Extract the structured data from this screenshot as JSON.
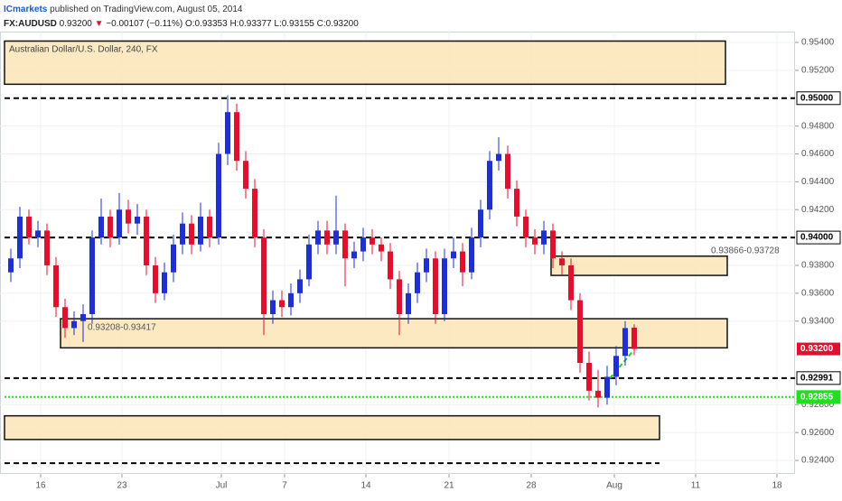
{
  "header": {
    "publisher": "ICmarkets",
    "published": "published on TradingView.com, August 05, 2014",
    "symbol": "FX:AUDUSD",
    "price": "0.93200",
    "arrow": "▼",
    "change": "−0.00107 (−0.11%)",
    "ohlc": "O:0.93353 H:0.93377 L:0.93155 C:0.93200"
  },
  "chart_data": {
    "type": "candlestick",
    "title": "Australian Dollar/U.S. Dollar, 240, FX",
    "up_color": "#1f2fd0",
    "down_color": "#e0112f",
    "xlim": [
      -1.2,
      86.8
    ],
    "ylim": [
      0.92303,
      0.95478
    ],
    "xticks": [
      {
        "value": 3.3,
        "label": "16"
      },
      {
        "value": 12.3,
        "label": "23"
      },
      {
        "value": 23.3,
        "label": "Jul"
      },
      {
        "value": 30.3,
        "label": "7"
      },
      {
        "value": 39.3,
        "label": "14"
      },
      {
        "value": 48.5,
        "label": "21"
      },
      {
        "value": 57.6,
        "label": "28"
      },
      {
        "value": 66.8,
        "label": "Aug"
      },
      {
        "value": 75.8,
        "label": "11"
      },
      {
        "value": 84.8,
        "label": "18"
      }
    ],
    "yticks": [
      {
        "value": 0.954,
        "label": "0.95400"
      },
      {
        "value": 0.952,
        "label": "0.95200"
      },
      {
        "value": 0.948,
        "label": "0.94800"
      },
      {
        "value": 0.946,
        "label": "0.94600"
      },
      {
        "value": 0.944,
        "label": "0.94400"
      },
      {
        "value": 0.942,
        "label": "0.94200"
      },
      {
        "value": 0.938,
        "label": "0.93800"
      },
      {
        "value": 0.936,
        "label": "0.93600"
      },
      {
        "value": 0.934,
        "label": "0.93400"
      },
      {
        "value": 0.928,
        "label": "0.92800"
      },
      {
        "value": 0.926,
        "label": "0.92600"
      },
      {
        "value": 0.924,
        "label": "0.92400"
      }
    ],
    "grid": true,
    "candles": [
      [
        0.9375,
        0.9392,
        0.9368,
        0.9385
      ],
      [
        0.9385,
        0.9422,
        0.9378,
        0.9415
      ],
      [
        0.9415,
        0.942,
        0.9395,
        0.94
      ],
      [
        0.94,
        0.9412,
        0.9393,
        0.9405
      ],
      [
        0.9405,
        0.941,
        0.9373,
        0.938
      ],
      [
        0.938,
        0.9386,
        0.9343,
        0.935
      ],
      [
        0.935,
        0.9356,
        0.9328,
        0.9335
      ],
      [
        0.9335,
        0.9347,
        0.933,
        0.934
      ],
      [
        0.934,
        0.9352,
        0.9325,
        0.9345
      ],
      [
        0.9345,
        0.9405,
        0.9338,
        0.94
      ],
      [
        0.94,
        0.9428,
        0.9395,
        0.9415
      ],
      [
        0.9415,
        0.942,
        0.9393,
        0.94
      ],
      [
        0.94,
        0.9432,
        0.9395,
        0.942
      ],
      [
        0.942,
        0.9427,
        0.9403,
        0.941
      ],
      [
        0.941,
        0.9424,
        0.9402,
        0.9415
      ],
      [
        0.9415,
        0.942,
        0.9373,
        0.938
      ],
      [
        0.938,
        0.9386,
        0.9353,
        0.936
      ],
      [
        0.936,
        0.9382,
        0.9355,
        0.9375
      ],
      [
        0.9375,
        0.9402,
        0.9368,
        0.9395
      ],
      [
        0.9395,
        0.9418,
        0.9388,
        0.941
      ],
      [
        0.941,
        0.9416,
        0.9388,
        0.9395
      ],
      [
        0.9395,
        0.9425,
        0.939,
        0.9415
      ],
      [
        0.9415,
        0.942,
        0.9393,
        0.94
      ],
      [
        0.94,
        0.9468,
        0.9395,
        0.946
      ],
      [
        0.946,
        0.9502,
        0.9452,
        0.949
      ],
      [
        0.949,
        0.9496,
        0.9448,
        0.9455
      ],
      [
        0.9455,
        0.9462,
        0.9428,
        0.9435
      ],
      [
        0.9435,
        0.9442,
        0.9393,
        0.94
      ],
      [
        0.94,
        0.9406,
        0.933,
        0.9345
      ],
      [
        0.9345,
        0.9362,
        0.9338,
        0.9355
      ],
      [
        0.9355,
        0.9362,
        0.9343,
        0.935
      ],
      [
        0.935,
        0.9367,
        0.9344,
        0.936
      ],
      [
        0.936,
        0.9377,
        0.9353,
        0.937
      ],
      [
        0.937,
        0.9402,
        0.9365,
        0.9395
      ],
      [
        0.9395,
        0.9412,
        0.9388,
        0.9405
      ],
      [
        0.9405,
        0.9412,
        0.9388,
        0.9395
      ],
      [
        0.9395,
        0.943,
        0.9388,
        0.9405
      ],
      [
        0.9405,
        0.941,
        0.9365,
        0.9385
      ],
      [
        0.9385,
        0.9397,
        0.9378,
        0.939
      ],
      [
        0.939,
        0.9407,
        0.9383,
        0.94
      ],
      [
        0.94,
        0.9406,
        0.9388,
        0.9395
      ],
      [
        0.9395,
        0.94,
        0.9383,
        0.939
      ],
      [
        0.939,
        0.9396,
        0.9363,
        0.937
      ],
      [
        0.937,
        0.9376,
        0.933,
        0.9345
      ],
      [
        0.9345,
        0.9367,
        0.9338,
        0.936
      ],
      [
        0.936,
        0.9382,
        0.9353,
        0.9375
      ],
      [
        0.9375,
        0.9392,
        0.9368,
        0.9385
      ],
      [
        0.9385,
        0.939,
        0.9338,
        0.9345
      ],
      [
        0.9345,
        0.9392,
        0.934,
        0.9385
      ],
      [
        0.9385,
        0.94,
        0.9378,
        0.939
      ],
      [
        0.939,
        0.9396,
        0.9365,
        0.9375
      ],
      [
        0.9375,
        0.9407,
        0.937,
        0.94
      ],
      [
        0.94,
        0.9427,
        0.9393,
        0.942
      ],
      [
        0.942,
        0.9462,
        0.9413,
        0.9455
      ],
      [
        0.9455,
        0.9472,
        0.9448,
        0.946
      ],
      [
        0.946,
        0.9466,
        0.9428,
        0.9435
      ],
      [
        0.9435,
        0.9441,
        0.9408,
        0.9415
      ],
      [
        0.9415,
        0.942,
        0.9393,
        0.94
      ],
      [
        0.94,
        0.9406,
        0.9388,
        0.9395
      ],
      [
        0.9395,
        0.9412,
        0.9388,
        0.9405
      ],
      [
        0.9405,
        0.941,
        0.9378,
        0.9385
      ],
      [
        0.9385,
        0.939,
        0.9373,
        0.938
      ],
      [
        0.938,
        0.9385,
        0.9348,
        0.9355
      ],
      [
        0.9355,
        0.936,
        0.9303,
        0.931
      ],
      [
        0.931,
        0.9318,
        0.9283,
        0.929
      ],
      [
        0.929,
        0.9305,
        0.9278,
        0.9285
      ],
      [
        0.9285,
        0.9308,
        0.928,
        0.93
      ],
      [
        0.93,
        0.9322,
        0.9294,
        0.9315
      ],
      [
        0.9315,
        0.934,
        0.9308,
        0.9335
      ],
      [
        0.93353,
        0.93377,
        0.93155,
        0.932
      ]
    ],
    "last_label": "0.93200",
    "last_color": "#e0112f",
    "zones": [
      {
        "x": [
          -0.7,
          79.1
        ],
        "y": [
          0.9541,
          0.951
        ]
      },
      {
        "x": [
          59.8,
          79.3
        ],
        "y": [
          0.93866,
          0.93728
        ],
        "label": "0.93866-0.93728",
        "label_x": 77.5
      },
      {
        "x": [
          5.5,
          79.3
        ],
        "y": [
          0.93417,
          0.93208
        ],
        "label": "0.93208-0.93417",
        "label_x": 8.5
      },
      {
        "x": [
          -0.7,
          71.8
        ],
        "y": [
          0.9272,
          0.9255
        ]
      }
    ],
    "levels": [
      {
        "value": 0.95,
        "x": [
          -0.7,
          86.8
        ],
        "label": "0.95000",
        "color": "#000000",
        "dash": "6,4"
      },
      {
        "value": 0.94,
        "x": [
          -0.7,
          86.8
        ],
        "label": "0.94000",
        "color": "#000000",
        "dash": "6,4"
      },
      {
        "value": 0.92991,
        "x": [
          -0.7,
          86.8
        ],
        "label": "0.92991",
        "color": "#000000",
        "dash": "6,4"
      },
      {
        "value": 0.92855,
        "x": [
          -0.7,
          86.8
        ],
        "label": "0.92855",
        "color": "#22dd22",
        "dash": "2,2"
      },
      {
        "value": 0.9238,
        "x": [
          -0.7,
          71.8
        ],
        "color": "#000000",
        "dash": "6,4"
      }
    ],
    "trendline": {
      "x": [
        65.8,
        68.8
      ],
      "y": [
        0.9295,
        0.9318
      ],
      "color": "#22cc22"
    }
  }
}
